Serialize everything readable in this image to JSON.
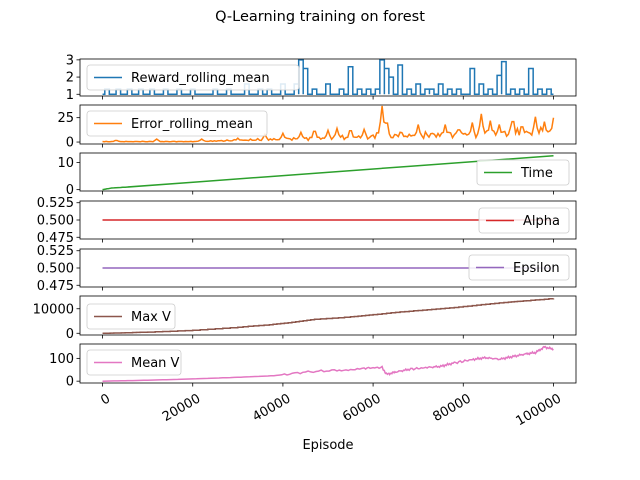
{
  "chart_data": {
    "type": "line",
    "title": "Q-Learning training on forest",
    "xlabel": "Episode",
    "xlim": [
      -5000,
      105000
    ],
    "x_ticks": [
      0,
      20000,
      40000,
      60000,
      80000,
      100000
    ],
    "x_tick_labels": [
      "0",
      "20000",
      "40000",
      "60000",
      "80000",
      "100000"
    ],
    "grid": false,
    "panels": [
      {
        "series": [
          {
            "name": "Reward_rolling_mean",
            "color": "#1f77b4"
          }
        ],
        "legend": "upper-left",
        "ylim": [
          0.9,
          3.05
        ],
        "y_ticks": [
          1,
          2,
          3
        ],
        "y_tick_labels": [
          "1",
          "2",
          "3"
        ],
        "baseline": 1,
        "spikes": [
          [
            1000,
            1.3
          ],
          [
            3500,
            1.3
          ],
          [
            6000,
            1.3
          ],
          [
            8500,
            1.3
          ],
          [
            11000,
            1.3
          ],
          [
            14000,
            1.3
          ],
          [
            17000,
            1.3
          ],
          [
            20000,
            1.3
          ],
          [
            25000,
            1.3
          ],
          [
            28000,
            1.3
          ],
          [
            32000,
            1.6
          ],
          [
            35000,
            1.3
          ],
          [
            37000,
            1.3
          ],
          [
            40000,
            1.6
          ],
          [
            43000,
            1.6
          ],
          [
            44000,
            3.0
          ],
          [
            45000,
            2.5
          ],
          [
            47000,
            1.3
          ],
          [
            50000,
            1.6
          ],
          [
            53000,
            1.3
          ],
          [
            55000,
            2.6
          ],
          [
            57000,
            1.3
          ],
          [
            59000,
            1.3
          ],
          [
            61000,
            1.3
          ],
          [
            62000,
            3.0
          ],
          [
            63000,
            2.5
          ],
          [
            64000,
            2.0
          ],
          [
            66000,
            2.7
          ],
          [
            68000,
            1.3
          ],
          [
            70000,
            1.6
          ],
          [
            72000,
            1.3
          ],
          [
            73000,
            1.3
          ],
          [
            75000,
            1.6
          ],
          [
            77000,
            1.3
          ],
          [
            79000,
            1.3
          ],
          [
            82000,
            2.5
          ],
          [
            84000,
            1.6
          ],
          [
            86000,
            1.3
          ],
          [
            88000,
            2.1
          ],
          [
            89000,
            2.9
          ],
          [
            91000,
            1.3
          ],
          [
            93000,
            1.3
          ],
          [
            95000,
            2.5
          ],
          [
            97000,
            1.3
          ],
          [
            99000,
            1.3
          ]
        ]
      },
      {
        "series": [
          {
            "name": "Error_rolling_mean",
            "color": "#ff7f0e"
          }
        ],
        "legend": "upper-left",
        "ylim": [
          -2,
          38
        ],
        "y_ticks": [
          0,
          25
        ],
        "y_tick_labels": [
          "0",
          "25"
        ],
        "spikes": [
          [
            3000,
            2
          ],
          [
            12000,
            3
          ],
          [
            22000,
            3
          ],
          [
            30000,
            4
          ],
          [
            36000,
            8
          ],
          [
            40000,
            9
          ],
          [
            44000,
            10
          ],
          [
            47000,
            14
          ],
          [
            50000,
            12
          ],
          [
            52000,
            14
          ],
          [
            55000,
            15
          ],
          [
            58000,
            13
          ],
          [
            61000,
            12
          ],
          [
            62000,
            37
          ],
          [
            63000,
            25
          ],
          [
            66000,
            10
          ],
          [
            70000,
            18
          ],
          [
            73000,
            11
          ],
          [
            76000,
            18
          ],
          [
            79000,
            16
          ],
          [
            82000,
            20
          ],
          [
            84000,
            29
          ],
          [
            86000,
            22
          ],
          [
            88000,
            18
          ],
          [
            91000,
            27
          ],
          [
            93000,
            20
          ],
          [
            96000,
            26
          ],
          [
            98000,
            21
          ],
          [
            100000,
            25
          ]
        ]
      },
      {
        "series": [
          {
            "name": "Time",
            "color": "#2ca02c"
          }
        ],
        "legend": "lower-right",
        "ylim": [
          -0.5,
          13.5
        ],
        "y_ticks": [
          0,
          10
        ],
        "y_tick_labels": [
          "0",
          "10"
        ],
        "points": [
          [
            0,
            0
          ],
          [
            2000,
            0.6
          ],
          [
            5000,
            0.9
          ],
          [
            100000,
            12.5
          ]
        ]
      },
      {
        "series": [
          {
            "name": "Alpha",
            "color": "#d62728"
          }
        ],
        "legend": "lower-right",
        "ylim": [
          0.4725,
          0.5275
        ],
        "y_ticks": [
          0.475,
          0.5,
          0.525
        ],
        "y_tick_labels": [
          "0.475",
          "0.500",
          "0.525"
        ],
        "points": [
          [
            0,
            0.5
          ],
          [
            100000,
            0.5
          ]
        ]
      },
      {
        "series": [
          {
            "name": "Epsilon",
            "color": "#9467bd"
          }
        ],
        "legend": "upper-right",
        "ylim": [
          0.4725,
          0.5275
        ],
        "y_ticks": [
          0.475,
          0.5,
          0.525
        ],
        "y_tick_labels": [
          "0.475",
          "0.500",
          "0.525"
        ],
        "points": [
          [
            0,
            0.5
          ],
          [
            100000,
            0.5
          ]
        ]
      },
      {
        "series": [
          {
            "name": "Max V",
            "color": "#8c564b"
          }
        ],
        "legend": "lower-left",
        "ylim": [
          -700,
          15200
        ],
        "y_ticks": [
          0,
          10000
        ],
        "y_tick_labels": [
          "0",
          "10000"
        ],
        "points": [
          [
            0,
            0
          ],
          [
            5000,
            200
          ],
          [
            10000,
            500
          ],
          [
            20000,
            1200
          ],
          [
            30000,
            2500
          ],
          [
            37000,
            3500
          ],
          [
            42000,
            4500
          ],
          [
            47000,
            5700
          ],
          [
            55000,
            6700
          ],
          [
            60000,
            7600
          ],
          [
            66000,
            8700
          ],
          [
            72000,
            9600
          ],
          [
            78000,
            10500
          ],
          [
            84000,
            11700
          ],
          [
            90000,
            12700
          ],
          [
            94000,
            13300
          ],
          [
            100000,
            14200
          ]
        ]
      },
      {
        "series": [
          {
            "name": "Mean V",
            "color": "#e377c2"
          }
        ],
        "legend": "upper-left",
        "ylim": [
          -8,
          163
        ],
        "y_ticks": [
          0,
          100
        ],
        "y_tick_labels": [
          "0",
          "100"
        ],
        "points": [
          [
            0,
            0
          ],
          [
            10000,
            4
          ],
          [
            20000,
            10
          ],
          [
            30000,
            17
          ],
          [
            38000,
            24
          ],
          [
            45000,
            40
          ],
          [
            52000,
            48
          ],
          [
            58000,
            57
          ],
          [
            62000,
            60
          ],
          [
            63000,
            30
          ],
          [
            65000,
            40
          ],
          [
            68000,
            52
          ],
          [
            72000,
            60
          ],
          [
            75000,
            65
          ],
          [
            78000,
            80
          ],
          [
            82000,
            95
          ],
          [
            85000,
            103
          ],
          [
            88000,
            96
          ],
          [
            91000,
            108
          ],
          [
            94000,
            120
          ],
          [
            96000,
            125
          ],
          [
            98000,
            150
          ],
          [
            100000,
            140
          ]
        ]
      }
    ]
  }
}
